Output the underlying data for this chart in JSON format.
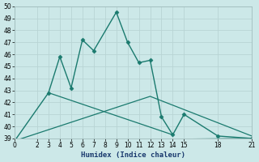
{
  "xlabel": "Humidex (Indice chaleur)",
  "ylabel": "",
  "bg_color": "#cce8e8",
  "grid_color": "#b8d4d4",
  "line_color": "#1a7a6e",
  "xlim": [
    0,
    21
  ],
  "ylim": [
    39,
    50
  ],
  "yticks": [
    39,
    40,
    41,
    42,
    43,
    44,
    45,
    46,
    47,
    48,
    49,
    50
  ],
  "xticks": [
    0,
    2,
    3,
    4,
    5,
    6,
    7,
    8,
    9,
    10,
    11,
    12,
    13,
    14,
    15,
    18,
    21
  ],
  "series": [
    {
      "x": [
        0,
        3,
        4,
        5,
        6,
        7,
        9,
        10,
        11,
        12,
        13,
        14,
        15,
        18,
        21
      ],
      "y": [
        38.8,
        42.8,
        45.8,
        43.2,
        47.2,
        46.3,
        49.5,
        47.0,
        45.3,
        45.5,
        40.8,
        39.3,
        41.0,
        39.2,
        39.0
      ],
      "marker": "D",
      "markersize": 2.5,
      "linewidth": 1.0
    },
    {
      "x": [
        0,
        21
      ],
      "y": [
        38.8,
        39.0
      ],
      "marker": null,
      "linewidth": 0.9
    },
    {
      "x": [
        0,
        12,
        21
      ],
      "y": [
        38.8,
        42.5,
        39.2
      ],
      "marker": null,
      "linewidth": 0.9
    },
    {
      "x": [
        3,
        14
      ],
      "y": [
        42.8,
        39.3
      ],
      "marker": null,
      "linewidth": 0.9
    }
  ]
}
